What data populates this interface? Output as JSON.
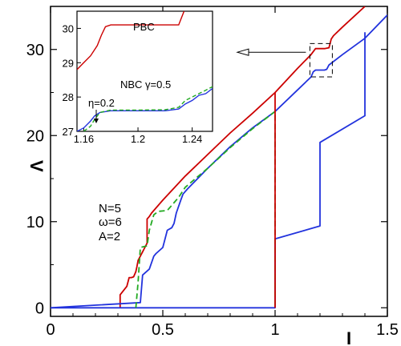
{
  "chart_data": [
    {
      "type": "line",
      "xlabel": "I",
      "ylabel": "V",
      "xlim": [
        0,
        1.5
      ],
      "ylim": [
        -1,
        35
      ],
      "xticks": [
        "0",
        "0.5",
        "1",
        "1.5"
      ],
      "yticks": [
        "0",
        "10",
        "20",
        "30"
      ],
      "xtick_values": [
        0,
        0.5,
        1,
        1.5
      ],
      "ytick_values": [
        0,
        10,
        20,
        30
      ],
      "grid": false,
      "annotations": [
        "N=5",
        "ω=6",
        "A=2"
      ],
      "series": [
        {
          "color": "#cc0000",
          "style": "solid",
          "x": [
            0.31,
            0.31,
            0.34,
            0.35,
            0.36,
            0.37,
            0.38,
            0.385,
            0.39,
            0.4,
            0.41,
            0.42,
            0.43,
            0.43,
            0.44,
            0.45,
            0.5,
            0.6,
            0.7,
            0.8,
            0.9,
            1.0,
            1.1,
            1.16,
            1.18,
            1.2,
            1.22,
            1.24,
            1.25,
            1.26,
            1.3,
            1.4
          ],
          "y": [
            0,
            1.5,
            2.5,
            3.5,
            3.5,
            3.6,
            4.2,
            4.8,
            5.5,
            6.0,
            6.5,
            7.0,
            7.5,
            10.3,
            10.6,
            11.0,
            12.5,
            15.3,
            17.8,
            20.3,
            22.6,
            25.0,
            27.8,
            29.4,
            30.1,
            30.1,
            30.1,
            30.2,
            31.2,
            31.6,
            32.6,
            35.0
          ]
        },
        {
          "color": "#2233dd",
          "style": "solid",
          "x": [
            0,
            0.2,
            0.4,
            0.41,
            0.44,
            0.46,
            0.47,
            0.5,
            0.52,
            0.54,
            0.55,
            0.56,
            0.58,
            0.59,
            0.61,
            0.7,
            0.8,
            0.9,
            1.0,
            1.1,
            1.16,
            1.17,
            1.18,
            1.2,
            1.22,
            1.23,
            1.24,
            1.3,
            1.4,
            1.5
          ],
          "y": [
            0,
            0.3,
            0.6,
            3.8,
            4.5,
            6.0,
            6.3,
            7.0,
            9.0,
            9.3,
            9.8,
            11.0,
            12.5,
            13.2,
            13.8,
            16.2,
            18.7,
            20.9,
            22.8,
            25.3,
            26.8,
            27.4,
            27.6,
            27.6,
            27.6,
            27.7,
            28.2,
            29.4,
            31.3,
            34.0
          ]
        },
        {
          "color": "#2233dd",
          "style": "solid",
          "x": [
            1.4,
            1.4,
            1.2,
            1.2,
            1.0,
            1.0,
            0.5,
            0.0
          ],
          "y": [
            32.0,
            22.3,
            19.2,
            9.5,
            8.0,
            0.0,
            0.0,
            0.0
          ]
        },
        {
          "color": "#22aa22",
          "style": "dashed",
          "x": [
            0.38,
            0.39,
            0.4,
            0.43,
            0.44,
            0.46,
            0.48,
            0.52,
            0.57,
            0.6,
            0.7,
            0.8,
            0.9,
            1.0,
            1.0
          ],
          "y": [
            0,
            3.0,
            7.0,
            7.2,
            9.0,
            10.8,
            11.2,
            11.3,
            12.8,
            14.0,
            16.2,
            18.6,
            20.8,
            22.8,
            0.0
          ]
        },
        {
          "color": "#cc0000",
          "style": "solid",
          "x": [
            1.0,
            1.0
          ],
          "y": [
            25.0,
            0.0
          ]
        }
      ]
    },
    {
      "type": "line",
      "role": "inset",
      "xlim": [
        1.155,
        1.255
      ],
      "ylim": [
        27,
        30.5
      ],
      "xticks": [
        "1.16",
        "1.2",
        "1.24"
      ],
      "yticks": [
        "27",
        "28",
        "29",
        "30"
      ],
      "xtick_values": [
        1.16,
        1.2,
        1.24
      ],
      "ytick_values": [
        27,
        28,
        29,
        30
      ],
      "annotations": [
        "PBC",
        "NBC γ=0.5",
        "η=0.2"
      ],
      "series": [
        {
          "color": "#cc0000",
          "style": "solid",
          "x": [
            1.155,
            1.16,
            1.165,
            1.17,
            1.173,
            1.176,
            1.18,
            1.2,
            1.22,
            1.23,
            1.232,
            1.234
          ],
          "y": [
            28.8,
            29.0,
            29.2,
            29.5,
            29.8,
            30.05,
            30.1,
            30.1,
            30.1,
            30.1,
            30.3,
            30.5
          ]
        },
        {
          "color": "#2233dd",
          "style": "solid",
          "x": [
            1.155,
            1.16,
            1.165,
            1.168,
            1.172,
            1.18,
            1.2,
            1.22,
            1.23,
            1.235,
            1.24,
            1.245,
            1.25,
            1.255
          ],
          "y": [
            27.0,
            27.1,
            27.3,
            27.45,
            27.55,
            27.6,
            27.6,
            27.6,
            27.65,
            27.8,
            27.9,
            28.05,
            28.1,
            28.25
          ]
        },
        {
          "color": "#22aa22",
          "style": "dashed",
          "x": [
            1.16,
            1.165,
            1.168,
            1.172,
            1.18,
            1.2,
            1.22,
            1.23,
            1.235,
            1.24,
            1.245,
            1.25,
            1.255
          ],
          "y": [
            27.0,
            27.15,
            27.35,
            27.55,
            27.62,
            27.62,
            27.63,
            27.7,
            27.9,
            28.0,
            28.1,
            28.2,
            28.3
          ]
        }
      ]
    }
  ]
}
